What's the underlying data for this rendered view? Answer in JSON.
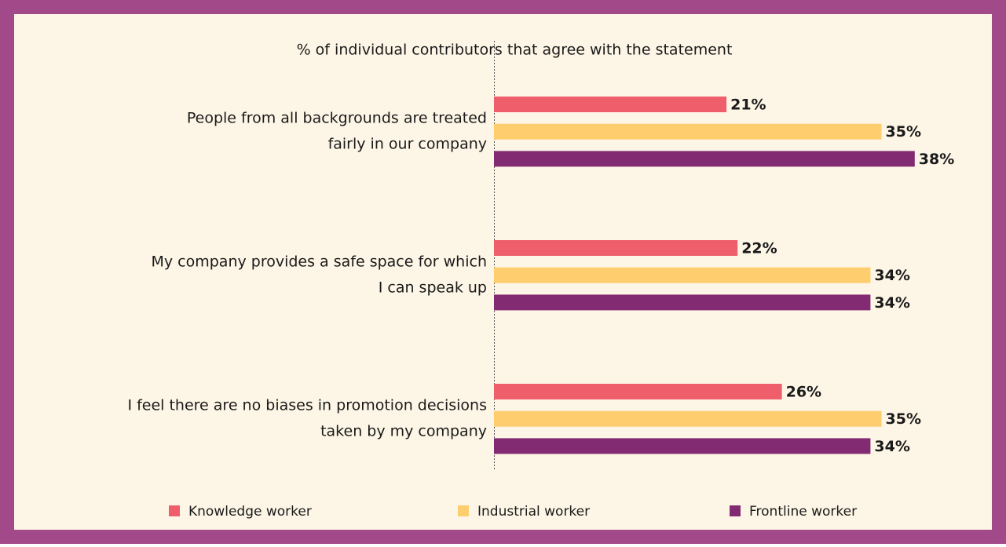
{
  "chart_data": {
    "type": "bar",
    "orientation": "horizontal",
    "title": "% of individual contributors that agree with the statement",
    "categories": [
      [
        "People from all backgrounds are treated",
        "fairly in our company"
      ],
      [
        "My company provides a safe space for which",
        "I can speak up"
      ],
      [
        "I feel there are no biases in promotion decisions",
        "taken by my company"
      ]
    ],
    "series": [
      {
        "name": "Knowledge worker",
        "color": "#ee5f6b",
        "values": [
          21,
          22,
          26
        ],
        "value_labels": [
          "21%",
          "22%",
          "26%"
        ]
      },
      {
        "name": "Industrial worker",
        "color": "#fecd6e",
        "values": [
          35,
          34,
          35
        ],
        "value_labels": [
          "35%",
          "34%",
          "35%"
        ]
      },
      {
        "name": "Frontline worker",
        "color": "#832b72",
        "values": [
          38,
          34,
          34
        ],
        "value_labels": [
          "38%",
          "34%",
          "34%"
        ]
      }
    ],
    "legend": "bottom"
  }
}
